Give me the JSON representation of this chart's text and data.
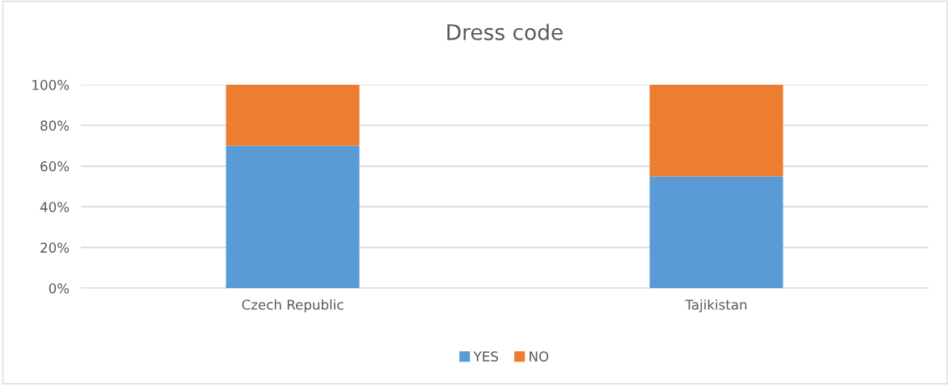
{
  "chart_data": {
    "type": "bar",
    "title": "Dress code",
    "stacked": true,
    "categories": [
      "Czech Republic",
      "Tajikistan"
    ],
    "series": [
      {
        "name": "YES",
        "color": "#5b9bd5",
        "values": [
          70,
          55
        ]
      },
      {
        "name": "NO",
        "color": "#ed7d31",
        "values": [
          30,
          45
        ]
      }
    ],
    "ylim": [
      0,
      100
    ],
    "yticks": [
      {
        "value": 0,
        "label": "0%"
      },
      {
        "value": 20,
        "label": "20%"
      },
      {
        "value": 40,
        "label": "40%"
      },
      {
        "value": 60,
        "label": "60%"
      },
      {
        "value": 80,
        "label": "80%"
      },
      {
        "value": 100,
        "label": "100%"
      }
    ],
    "grid": "y",
    "legend": "bottom"
  }
}
